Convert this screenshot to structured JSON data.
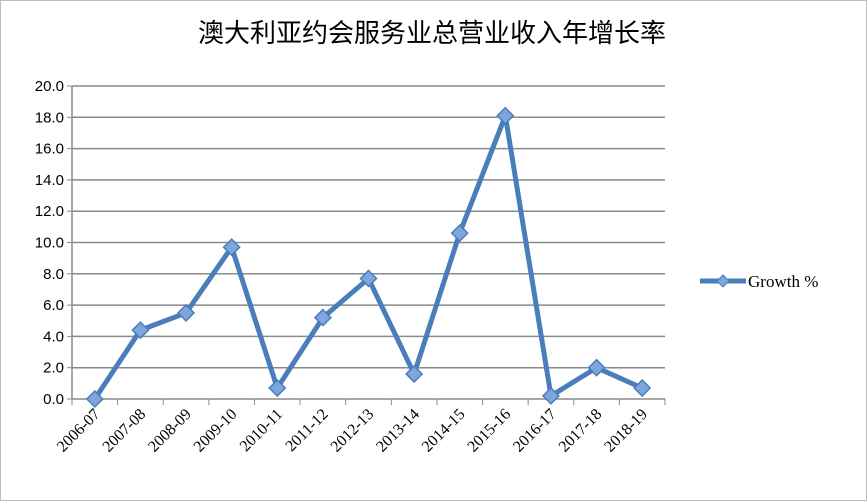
{
  "chart_data": {
    "type": "line",
    "title": "澳大利亚约会服务业总营业收入年增长率",
    "categories": [
      "2006-07",
      "2007-08",
      "2008-09",
      "2009-10",
      "2010-11",
      "2011-12",
      "2012-13",
      "2013-14",
      "2014-15",
      "2015-16",
      "2016-17",
      "2017-18",
      "2018-19"
    ],
    "series": [
      {
        "name": "Growth %",
        "color": "#4a7ebb",
        "values": [
          0.0,
          4.4,
          5.5,
          9.7,
          0.7,
          5.2,
          7.7,
          1.6,
          10.6,
          18.1,
          0.2,
          2.0,
          0.7
        ]
      }
    ],
    "ylim": [
      0,
      20
    ],
    "yticks": [
      {
        "value": 0,
        "label": "0.0"
      },
      {
        "value": 2,
        "label": "2.0"
      },
      {
        "value": 4,
        "label": "4.0"
      },
      {
        "value": 6,
        "label": "6.0"
      },
      {
        "value": 8,
        "label": "8.0"
      },
      {
        "value": 10,
        "label": "10.0"
      },
      {
        "value": 12,
        "label": "12.0"
      },
      {
        "value": 14,
        "label": "14.0"
      },
      {
        "value": 16,
        "label": "16.0"
      },
      {
        "value": 18,
        "label": "18.0"
      },
      {
        "value": 20,
        "label": "20.0"
      }
    ],
    "grid": true,
    "legend": "right"
  }
}
